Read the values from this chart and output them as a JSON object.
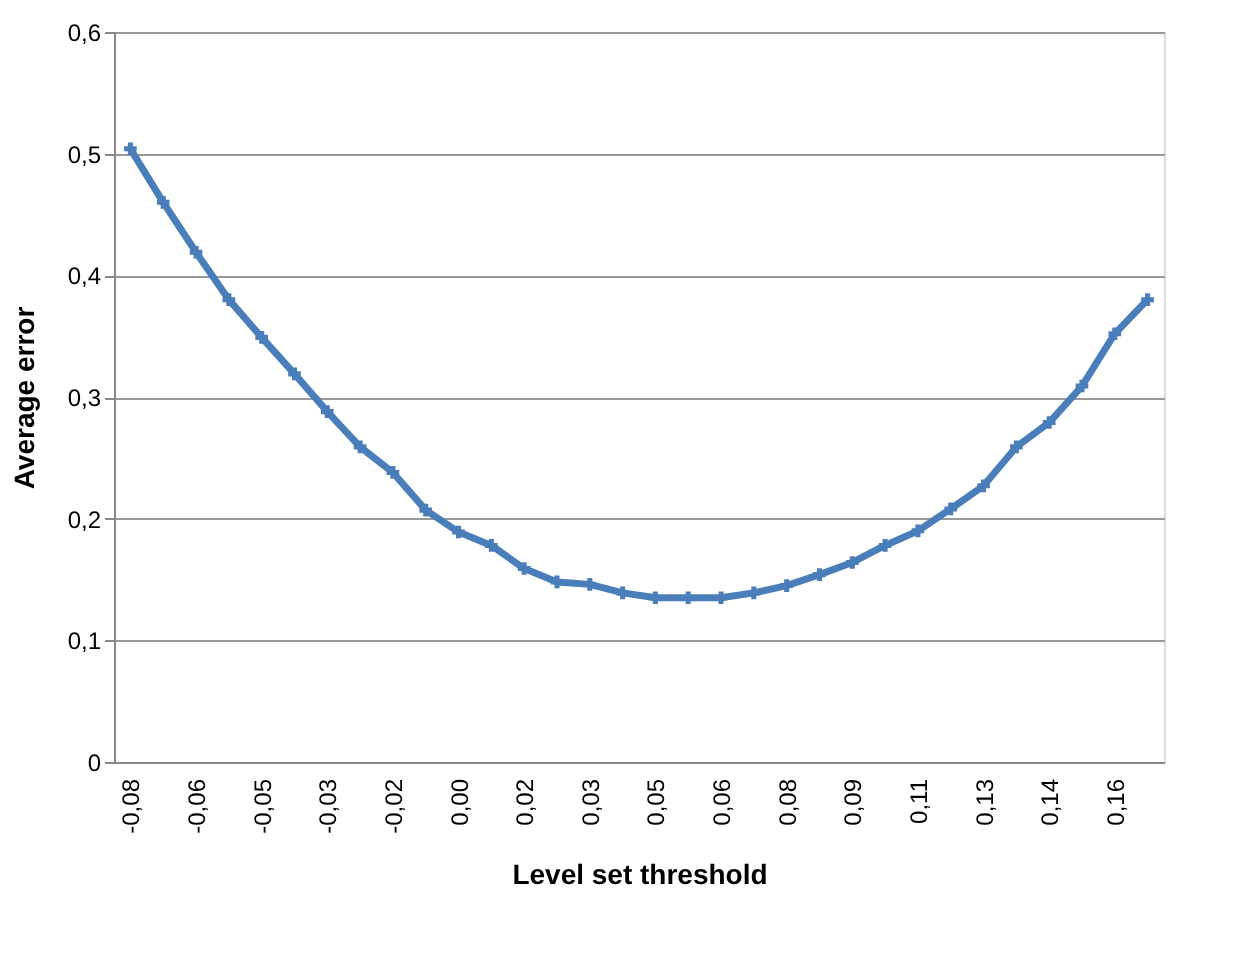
{
  "chart_data": {
    "type": "line",
    "xlabel": "Level set threshold",
    "ylabel": "Average  error",
    "categories": [
      "-0,08",
      null,
      "-0,06",
      null,
      "-0,05",
      null,
      "-0,03",
      null,
      "-0,02",
      null,
      "0,00",
      null,
      "0,02",
      null,
      "0,03",
      null,
      "0,05",
      null,
      "0,06",
      null,
      "0,08",
      null,
      "0,09",
      null,
      "0,11",
      null,
      "0,13",
      null,
      "0,14",
      null,
      "0,16",
      null
    ],
    "series": [
      {
        "color": "#4a7ebb",
        "values": [
          0.504,
          0.46,
          0.419,
          0.38,
          0.349,
          0.319,
          0.288,
          0.259,
          0.238,
          0.207,
          0.189,
          0.178,
          0.159,
          0.148,
          0.146,
          0.139,
          0.135,
          0.135,
          0.135,
          0.139,
          0.145,
          0.154,
          0.164,
          0.178,
          0.19,
          0.208,
          0.227,
          0.259,
          0.279,
          0.309,
          0.352,
          0.38
        ]
      }
    ],
    "ylim": [
      0,
      0.6
    ],
    "yticks": [
      0,
      {
        "value": 0.1,
        "label": "0,1"
      },
      {
        "value": 0.2,
        "label": "0,2"
      },
      {
        "value": 0.3,
        "label": "0,3"
      },
      {
        "value": 0.4,
        "label": "0,4"
      },
      {
        "value": 0.5,
        "label": "0,5"
      },
      {
        "value": 0.6,
        "label": "0,6"
      }
    ],
    "grid": "y",
    "marker": "cross",
    "line_style": "solid"
  }
}
